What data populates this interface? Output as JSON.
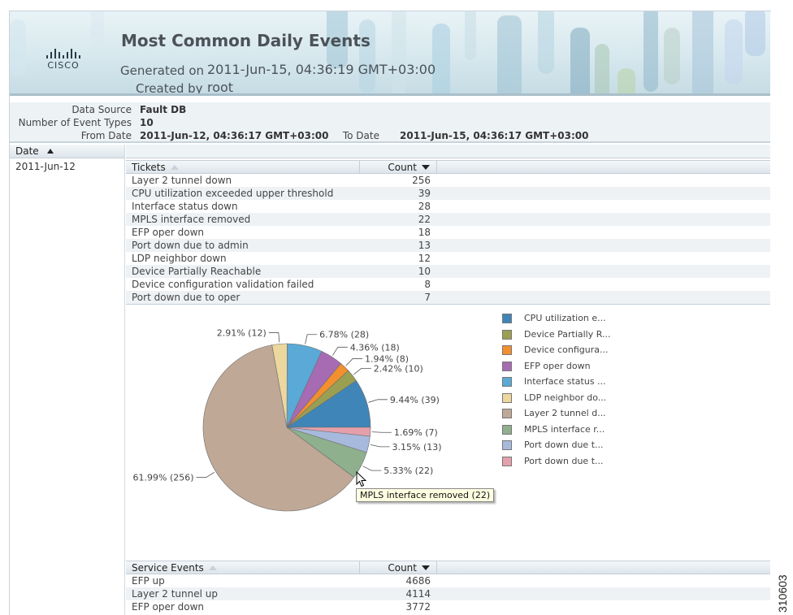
{
  "report": {
    "title": "Most Common Daily Events",
    "generated_label": "Generated on",
    "generated_value": "2011-Jun-15, 04:36:19 GMT+03:00",
    "created_label": "Created by",
    "created_value": "root",
    "logo_text": "CISCO"
  },
  "params": {
    "data_source_label": "Data Source",
    "data_source_value": "Fault DB",
    "event_types_label": "Number of Event Types",
    "event_types_value": "10",
    "from_label": "From Date",
    "from_value": "2011-Jun-12, 04:36:17 GMT+03:00",
    "to_label": "To Date",
    "to_value": "2011-Jun-15, 04:36:17 GMT+03:00"
  },
  "date_column": {
    "header": "Date",
    "value": "2011-Jun-12"
  },
  "tickets_table": {
    "header_name": "Tickets",
    "header_count": "Count",
    "rows": [
      {
        "name": "Layer 2 tunnel down",
        "count": "256"
      },
      {
        "name": "CPU utilization exceeded upper threshold",
        "count": "39"
      },
      {
        "name": "Interface status down",
        "count": "28"
      },
      {
        "name": "MPLS interface removed",
        "count": "22"
      },
      {
        "name": "EFP oper down",
        "count": "18"
      },
      {
        "name": "Port down due to admin",
        "count": "13"
      },
      {
        "name": "LDP neighbor down",
        "count": "12"
      },
      {
        "name": "Device Partially Reachable",
        "count": "10"
      },
      {
        "name": "Device configuration validation failed",
        "count": "8"
      },
      {
        "name": "Port down due to oper",
        "count": "7"
      }
    ]
  },
  "chart_data": {
    "type": "pie",
    "slices": [
      {
        "label": "CPU utilization e...",
        "value": 39,
        "text": "9.44% (39)",
        "color": "#3f85b8"
      },
      {
        "label": "Device Partially R...",
        "value": 10,
        "text": "2.42% (10)",
        "color": "#9a9f52"
      },
      {
        "label": "Device configura...",
        "value": 8,
        "text": "1.94% (8)",
        "color": "#f28f2e"
      },
      {
        "label": "EFP oper down",
        "value": 18,
        "text": "4.36% (18)",
        "color": "#a66bb2"
      },
      {
        "label": "Interface status ...",
        "value": 28,
        "text": "6.78% (28)",
        "color": "#5aa9d6"
      },
      {
        "label": "LDP neighbor do...",
        "value": 12,
        "text": "2.91% (12)",
        "color": "#ecd79e"
      },
      {
        "label": "Layer 2 tunnel d...",
        "value": 256,
        "text": "61.99% (256)",
        "color": "#bfa896"
      },
      {
        "label": "MPLS interface r...",
        "value": 22,
        "text": "5.33% (22)",
        "color": "#8fb08d"
      },
      {
        "label": "Port down due t...",
        "value": 13,
        "text": "3.15% (13)",
        "color": "#a7b9dc"
      },
      {
        "label": "Port down due t...",
        "value": 7,
        "text": "1.69% (7)",
        "color": "#e5a0ab"
      }
    ],
    "legend": "right"
  },
  "tooltip": {
    "text": "MPLS interface removed (22)"
  },
  "service_table": {
    "header_name": "Service Events",
    "header_count": "Count",
    "rows": [
      {
        "name": "EFP up",
        "count": "4686"
      },
      {
        "name": "Layer 2 tunnel up",
        "count": "4114"
      },
      {
        "name": "EFP oper down",
        "count": "3772"
      }
    ]
  },
  "side_id": "310603"
}
